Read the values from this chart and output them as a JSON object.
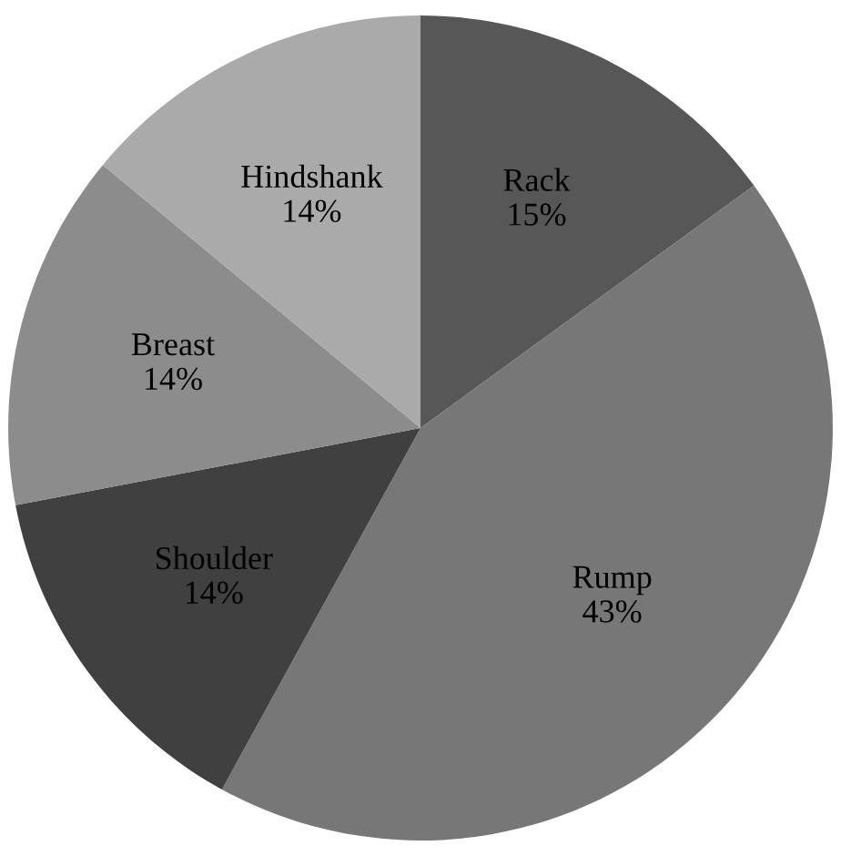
{
  "chart_data": {
    "type": "pie",
    "categories": [
      "Rack",
      "Rump",
      "Shoulder",
      "Breast",
      "Hindshank"
    ],
    "values": [
      15,
      43,
      14,
      14,
      14
    ],
    "value_labels": [
      "15%",
      "43%",
      "14%",
      "14%",
      "14%"
    ],
    "colors": [
      "#575757",
      "#777777",
      "#404040",
      "#8c8c8c",
      "#aaaaaa"
    ]
  }
}
